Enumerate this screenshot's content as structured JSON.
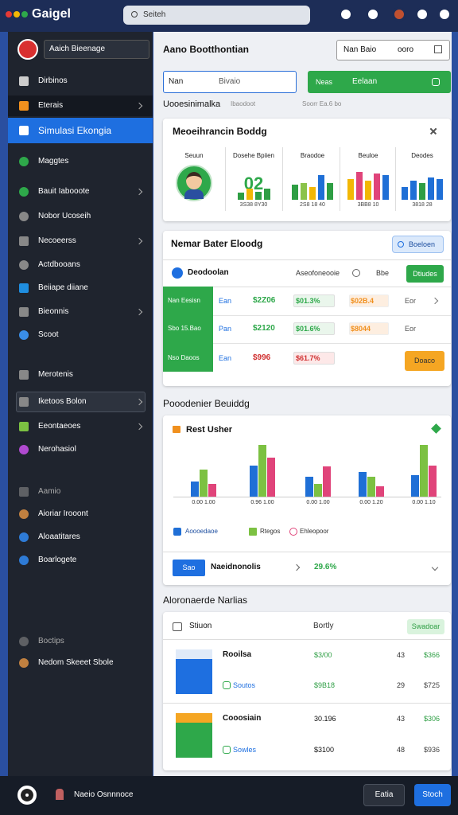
{
  "topbar": {
    "title": "Gaigel",
    "search": "Seiteh"
  },
  "sidebar": {
    "brand": "Aaich Bieenage",
    "items": [
      "Dirbinos",
      "Eterais",
      "Simulasi Ekongia",
      "Maggtes",
      "Bauit Iabooote",
      "Nobor Ucoseih",
      "Necoeerss",
      "Actdbooans",
      "Beiiape diiane",
      "Bieonnis",
      "Scoot",
      "Merotenis",
      "Iketoos Bolon",
      "Eeontaeoes",
      "Nerohasiol",
      "Aamio",
      "Aioriar Irooont",
      "Aloaatitares",
      "Boarlogete",
      "Boctips",
      "Nedom Skeeet Sbole"
    ]
  },
  "header": {
    "title": "Aano Bootthontian",
    "box_label": "Nan Baio",
    "box_value": "ooro"
  },
  "filters": {
    "input_label": "Nan",
    "input_value": "Bivaio",
    "button_label": "Neas",
    "button_value": "Eelaan"
  },
  "meta": [
    "Uooesinimalka",
    "Ibaodoot",
    "Soorr Ea.6 bo"
  ],
  "overview": {
    "title": "Meoeihrancin Boddg",
    "ylim": [
      0,
      100
    ],
    "columns": [
      {
        "label": "Seuun"
      },
      {
        "label": "Dosehe Bpiien",
        "value_text": "02",
        "values": [
          55,
          85,
          60,
          90
        ],
        "colors": [
          "#2e9e44",
          "#f2b705",
          "#2e9e44",
          "#2e9e44"
        ],
        "footer": "3S38 8Y30"
      },
      {
        "label": "Braodoe",
        "values": [
          55,
          60,
          45,
          90,
          60
        ],
        "colors": [
          "#2e9e44",
          "#8bc34a",
          "#f2b705",
          "#1f6fd6",
          "#2e9e44"
        ],
        "footer": "2S8 18 40"
      },
      {
        "label": "Beuloe",
        "values": [
          75,
          100,
          70,
          95,
          90
        ],
        "colors": [
          "#f2b705",
          "#e0447a",
          "#f2b705",
          "#e0447a",
          "#1f6fd6"
        ],
        "footer": "3BB8 10"
      },
      {
        "label": "Deodes",
        "values": [
          45,
          70,
          60,
          80,
          75
        ],
        "colors": [
          "#1f6fd6",
          "#1f6fd6",
          "#2e9e44",
          "#1f6fd6",
          "#1f6fd6"
        ],
        "footer": "3818 28"
      }
    ]
  },
  "table": {
    "title": "Nemar Bater Eloodg",
    "button": "Boeloen",
    "header": [
      "Deodoolan",
      "Aseofoneooie",
      "Bbe",
      "Dtiudes"
    ],
    "rows": [
      [
        "Nan Eesisn",
        "Ean",
        "$2Z06",
        "$01.3%",
        "$02B.4",
        "Eor"
      ],
      [
        "Sbo 15.Bao",
        "Pan",
        "$2120",
        "$01.6%",
        "$8044",
        "Eor"
      ],
      [
        "Nso Daoos",
        "Ean",
        "$996",
        "$61.7%",
        "Doaco"
      ]
    ]
  },
  "section_title": "Pooodenier Beuiddg",
  "chart_data": {
    "type": "bar",
    "title": "Rest Usher",
    "categories": [
      "0.00 1.00",
      "0.96 1.00",
      "0.00 1.00",
      "0.00 1.20",
      "0.00 1.10"
    ],
    "ylim": [
      0,
      100
    ],
    "series": [
      {
        "name": "Aoooedaoe",
        "color": "#1f6fd6",
        "values": [
          30,
          60,
          38,
          48,
          42
        ]
      },
      {
        "name": "Rtegos",
        "color": "#7cc142",
        "values": [
          52,
          100,
          25,
          38,
          100
        ]
      },
      {
        "name": "Ehleopoor",
        "color": "#e0447a",
        "values": [
          25,
          75,
          58,
          20,
          60
        ]
      }
    ]
  },
  "chart_footer": {
    "badge": "Sao",
    "label": "Naeidnonolis",
    "value": "29.6%"
  },
  "products": {
    "title": "Aloronaerde Narlias",
    "header": [
      "Stiuon",
      "Bortly",
      "Swadoar"
    ],
    "rows": [
      [
        "Rooilsa",
        "$3/00",
        "43",
        "$366"
      ],
      [
        "Soutos",
        "$9B18",
        "29",
        "$725"
      ],
      [
        "Cooosiain",
        "30.196",
        "43",
        "$306"
      ],
      [
        "Sowles",
        "$3100",
        "48",
        "$936"
      ]
    ]
  },
  "footer": {
    "user": "Naeio Osnnnoce",
    "secondary": "Eatia",
    "primary": "Stoch"
  }
}
